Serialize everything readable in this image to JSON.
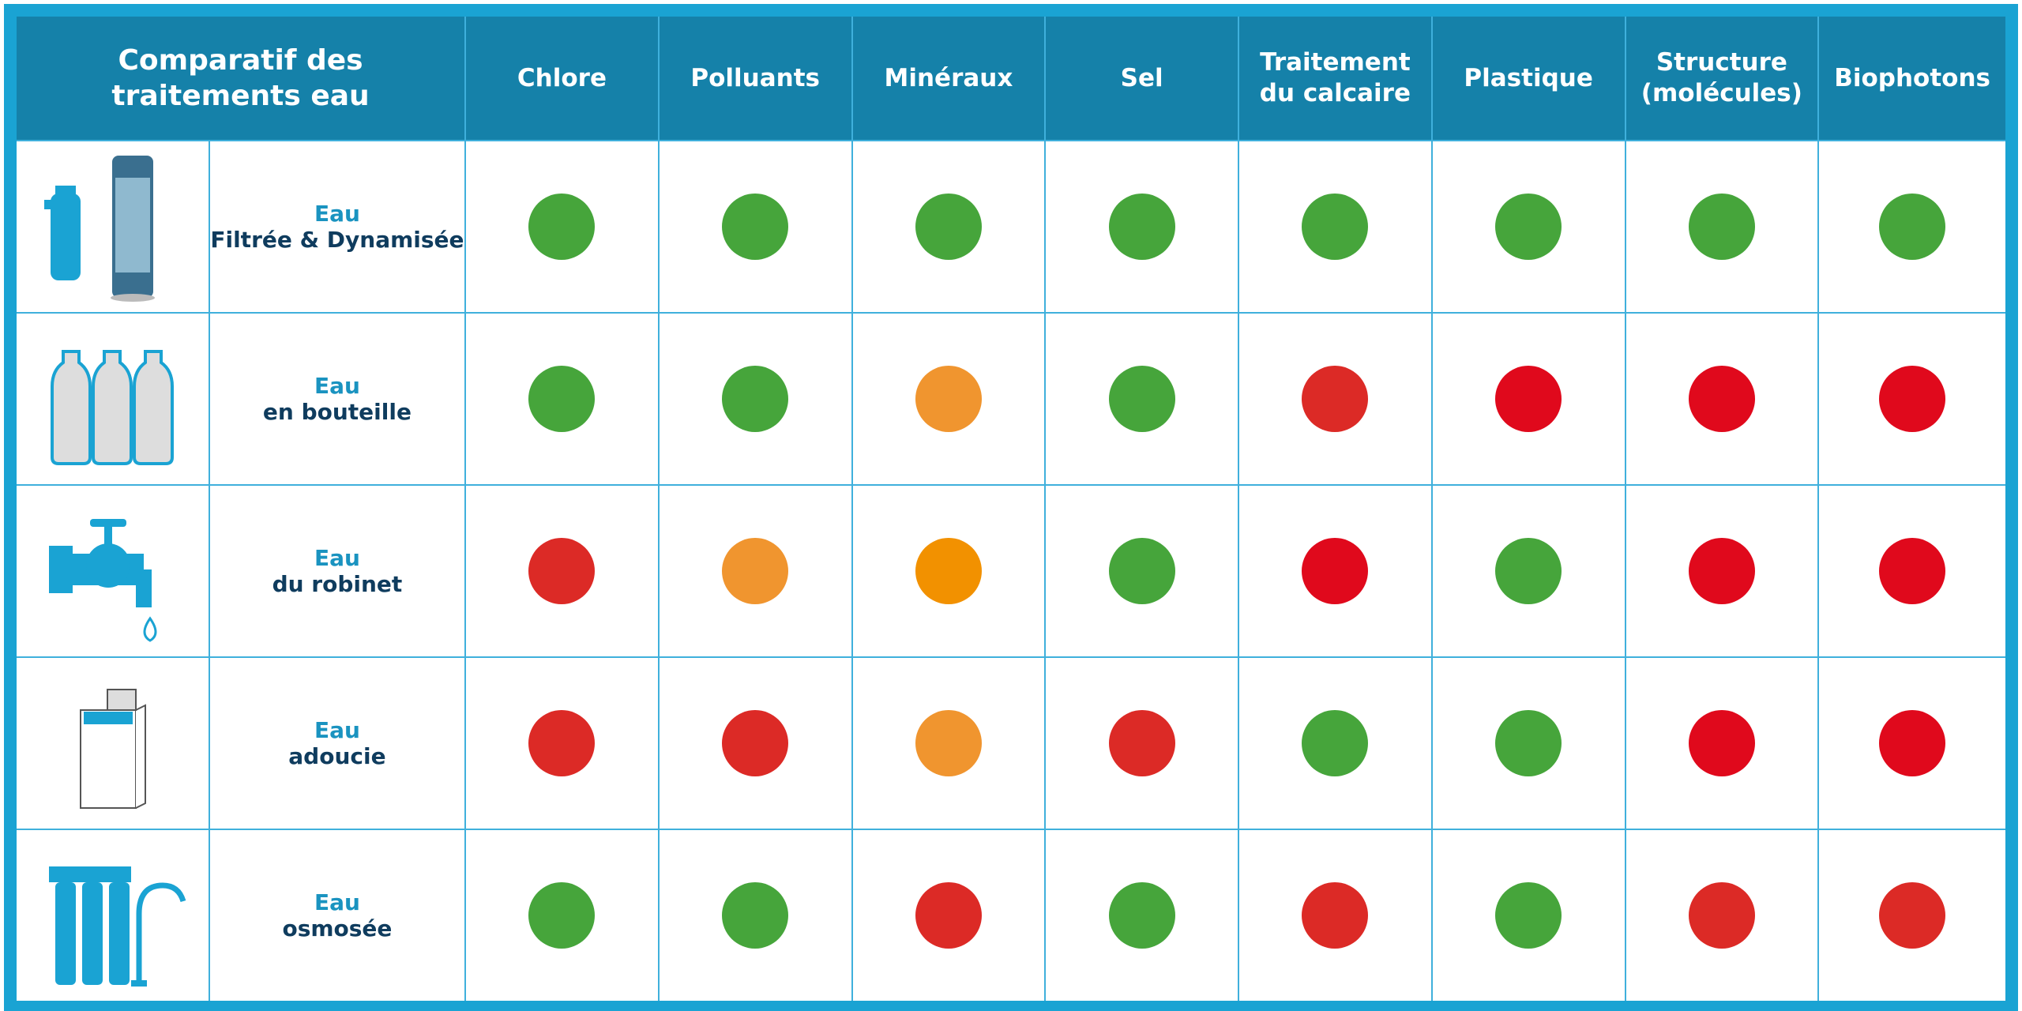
{
  "header": {
    "title": "Comparatif des\ntraitements eau",
    "columns": [
      "Chlore",
      "Polluants",
      "Minéraux",
      "Sel",
      "Traitement\ndu calcaire",
      "Plastique",
      "Structure\n(molécules)",
      "Biophotons"
    ]
  },
  "rows": [
    {
      "label": [
        "Eau",
        "Filtrée & Dynamisée"
      ],
      "cells": [
        "#46a53b",
        "#46a53b",
        "#46a53b",
        "#46a53b",
        "#46a53b",
        "#46a53b",
        "#46a53b",
        "#46a53b"
      ]
    },
    {
      "label": [
        "Eau",
        "en bouteille"
      ],
      "cells": [
        "#46a53b",
        "#46a53b",
        "#f0952f",
        "#46a53b",
        "#dc2a26",
        "#e0091c",
        "#e0091c",
        "#e0091c"
      ]
    },
    {
      "label": [
        "Eau",
        "du robinet"
      ],
      "cells": [
        "#dc2a26",
        "#f0952f",
        "#f29100",
        "#46a53b",
        "#e0091c",
        "#46a53b",
        "#e0091c",
        "#e0091c"
      ]
    },
    {
      "label": [
        "Eau",
        "adoucie"
      ],
      "cells": [
        "#dc2a26",
        "#dc2a26",
        "#f0952f",
        "#dc2a26",
        "#46a53b",
        "#46a53b",
        "#e0091c",
        "#e0091c"
      ]
    },
    {
      "label": [
        "Eau",
        "osmosée"
      ],
      "cells": [
        "#46a53b",
        "#46a53b",
        "#dc2a26",
        "#46a53b",
        "#dc2a26",
        "#46a53b",
        "#dc2a26",
        "#dc2a26"
      ]
    }
  ]
}
